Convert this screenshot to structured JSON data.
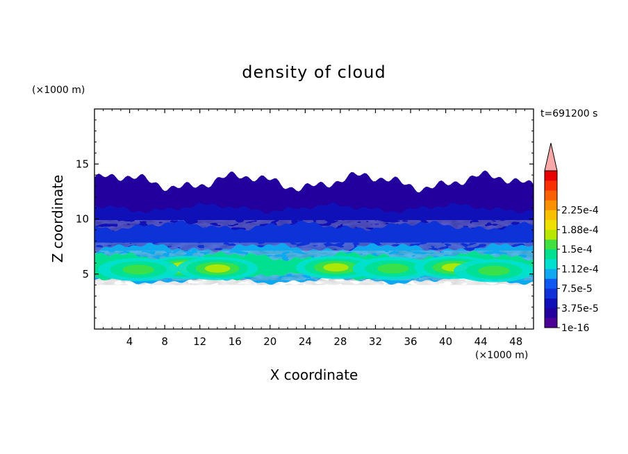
{
  "chart_data": {
    "type": "heatmap",
    "title": "density of cloud",
    "xlabel": "X coordinate",
    "ylabel": "Z coordinate",
    "x_unit": "(×1000 m)",
    "y_unit": "(×1000 m)",
    "time_label": "t=691200 s",
    "xlim": [
      0,
      50
    ],
    "ylim": [
      0,
      20
    ],
    "x_ticks": [
      4,
      8,
      12,
      16,
      20,
      24,
      28,
      32,
      36,
      40,
      44,
      48
    ],
    "y_ticks": [
      5,
      10,
      15
    ],
    "grid": false,
    "colorbar": {
      "placement": "right",
      "labels": [
        "1e-16",
        "3.75e-5",
        "7.5e-5",
        "1.12e-4",
        "1.5e-4",
        "1.88e-4",
        "2.25e-4"
      ],
      "label_levels": [
        0,
        2,
        4,
        6,
        8,
        10,
        12
      ],
      "colors": [
        "#4b0096",
        "#23009e",
        "#1010b8",
        "#1030d8",
        "#1058f0",
        "#10a8f0",
        "#00e0d0",
        "#00e090",
        "#40e040",
        "#b8e800",
        "#f0e000",
        "#f8c000",
        "#f89000",
        "#f86000",
        "#f83000",
        "#e80000"
      ],
      "over_color": "#f8a8a8"
    },
    "layers": [
      {
        "name": "upper",
        "level": 1,
        "z_bottom": 10.4,
        "z_top": 13.4
      },
      {
        "name": "mid",
        "level": 2,
        "z_bottom": 8.6,
        "z_top": 11.0
      },
      {
        "name": "lower",
        "level": 3,
        "z_bottom": 7.0,
        "z_top": 9.4
      },
      {
        "name": "band",
        "level": 5,
        "z_bottom": 4.4,
        "z_top": 7.4
      },
      {
        "name": "core",
        "level": 7,
        "z_bottom": 4.8,
        "z_top": 6.6
      }
    ],
    "peaks": [
      {
        "x": 10.5,
        "z": 5.6,
        "level": 10
      },
      {
        "x": 5.0,
        "z": 5.4,
        "level": 8
      },
      {
        "x": 14.0,
        "z": 5.5,
        "level": 9
      },
      {
        "x": 27.5,
        "z": 5.6,
        "level": 9
      },
      {
        "x": 34.0,
        "z": 5.5,
        "level": 8
      },
      {
        "x": 41.0,
        "z": 5.6,
        "level": 9
      },
      {
        "x": 45.5,
        "z": 5.3,
        "level": 8
      }
    ]
  }
}
